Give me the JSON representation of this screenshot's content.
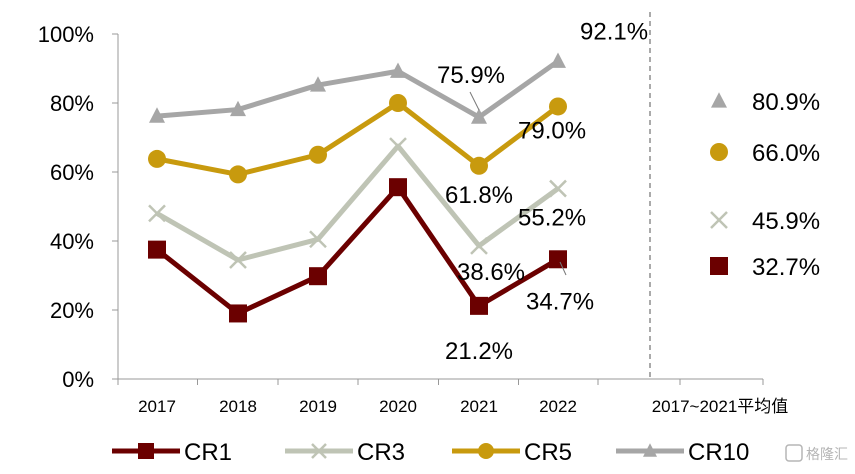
{
  "chart_data": {
    "type": "line",
    "categories": [
      "2017",
      "2018",
      "2019",
      "2020",
      "2021",
      "2022"
    ],
    "extra_category": "2017~2021平均值",
    "ylim": [
      0,
      100
    ],
    "yticks": [
      0,
      20,
      40,
      60,
      80,
      100
    ],
    "ytick_labels": [
      "0%",
      "20%",
      "40%",
      "60%",
      "80%",
      "100%"
    ],
    "series": [
      {
        "name": "CR1",
        "values": [
          37.5,
          19.0,
          29.8,
          55.6,
          21.2,
          34.7
        ],
        "color": "#6b0000",
        "marker": "square",
        "average": 32.7,
        "average_label": "32.7%"
      },
      {
        "name": "CR3",
        "values": [
          48.0,
          34.5,
          40.5,
          67.5,
          38.6,
          55.2
        ],
        "color": "#bfc4b5",
        "marker": "x",
        "average": 45.9,
        "average_label": "45.9%"
      },
      {
        "name": "CR5",
        "values": [
          63.8,
          59.3,
          65.0,
          80.0,
          61.8,
          79.0
        ],
        "color": "#c89a0e",
        "marker": "circle",
        "average": 66.0,
        "average_label": "66.0%"
      },
      {
        "name": "CR10",
        "values": [
          76.2,
          78.1,
          85.2,
          89.2,
          75.9,
          92.1
        ],
        "color": "#a6a6a6",
        "marker": "triangle",
        "average": 80.9,
        "average_label": "80.9%"
      }
    ],
    "data_labels": [
      {
        "series": "CR10",
        "index": 5,
        "text": "92.1%"
      },
      {
        "series": "CR10",
        "index": 4,
        "text": "75.9%"
      },
      {
        "series": "CR5",
        "index": 5,
        "text": "79.0%"
      },
      {
        "series": "CR5",
        "index": 4,
        "text": "61.8%"
      },
      {
        "series": "CR3",
        "index": 5,
        "text": "55.2%"
      },
      {
        "series": "CR3",
        "index": 4,
        "text": "38.6%"
      },
      {
        "series": "CR1",
        "index": 5,
        "text": "34.7%"
      },
      {
        "series": "CR1",
        "index": 4,
        "text": "21.2%"
      }
    ],
    "legend_position": "bottom"
  },
  "watermark": "格隆汇"
}
